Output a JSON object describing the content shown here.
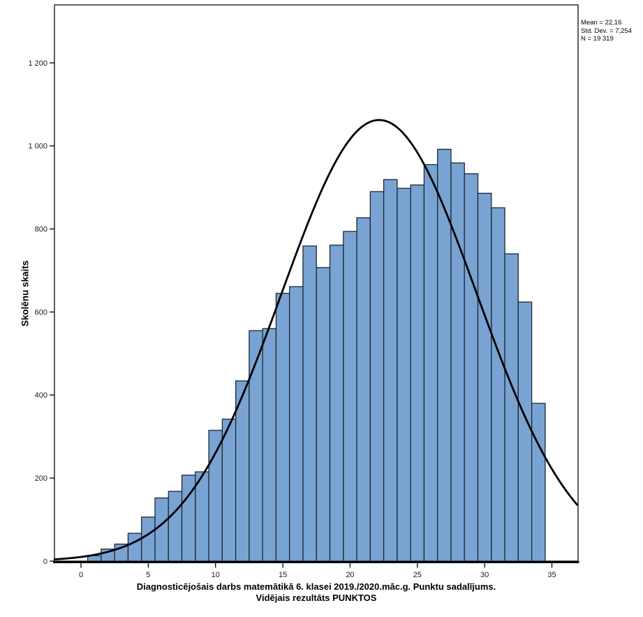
{
  "chart_data": {
    "type": "bar",
    "subtype": "histogram-with-normal-curve",
    "title": "",
    "ylabel": "Skolēnu skaits",
    "xlabel_line1": "Diagnosticējošais darbs matemātikā 6. klasei 2019./2020.māc.g. Punktu sadalījums.",
    "xlabel_line2": "Vidējais rezultāts PUNKTOS",
    "bin_width": 1,
    "bin_centers": [
      1,
      2,
      3,
      4,
      5,
      6,
      7,
      8,
      9,
      10,
      11,
      12,
      13,
      14,
      15,
      16,
      17,
      18,
      19,
      20,
      21,
      22,
      23,
      24,
      25,
      26,
      27,
      28,
      29,
      30,
      31,
      32,
      33,
      34
    ],
    "values": [
      13,
      29,
      41,
      67,
      106,
      152,
      168,
      207,
      215,
      315,
      342,
      434,
      555,
      560,
      645,
      661,
      759,
      707,
      761,
      794,
      827,
      890,
      919,
      898,
      906,
      955,
      992,
      959,
      933,
      886,
      851,
      740,
      624,
      380
    ],
    "x_ticks": {
      "values": [
        0,
        5,
        10,
        15,
        20,
        25,
        30,
        35
      ],
      "labels": [
        "0",
        "5",
        "10",
        "15",
        "20",
        "25",
        "30",
        "35"
      ]
    },
    "y_ticks": {
      "values": [
        0,
        200,
        400,
        600,
        800,
        1000,
        1200
      ],
      "labels": [
        "0",
        "200",
        "400",
        "600",
        "800",
        "1 000",
        "1 200"
      ]
    },
    "xlim": [
      -1.97,
      36.94
    ],
    "ylim": [
      0,
      1340
    ],
    "grid": "off",
    "normal_curve": {
      "mean": 22.16,
      "std_dev": 7.254,
      "n": 19319
    },
    "colors": {
      "bar_fill": "#79A3D2",
      "bar_border": "#1B2837",
      "curve": "#000000",
      "frame": "#2b2b2b",
      "axis": "#000000",
      "background": "#ffffff"
    }
  },
  "stats_box": {
    "line1": "Mean = 22,16",
    "line2": "Std. Dev. = 7,254",
    "line3": "N = 19 319"
  }
}
